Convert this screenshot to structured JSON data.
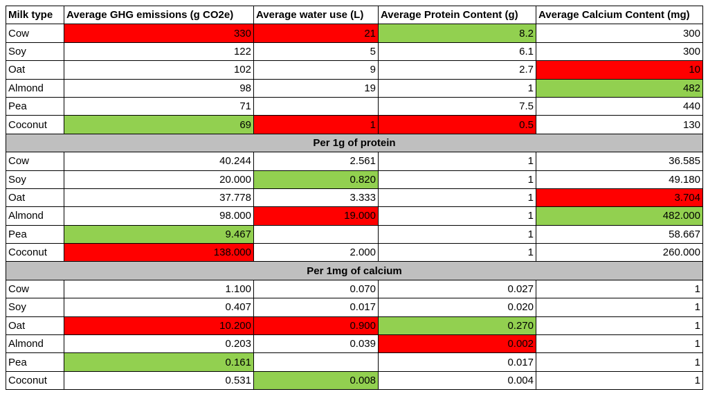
{
  "table": {
    "header": [
      "Milk type",
      "Average GHG emissions (g CO2e)",
      "Average water use (L)",
      "Average Protein Content (g)",
      "Average Calcium Content (mg)"
    ],
    "sections": [
      {
        "rows": [
          [
            "Cow",
            {
              "text": "330",
              "fill": "#ff0000"
            },
            {
              "text": "21",
              "fill": "#ff0000"
            },
            {
              "text": "8.2",
              "fill": "#92d050"
            },
            "300"
          ],
          [
            "Soy",
            "122",
            "5",
            "6.1",
            "300"
          ],
          [
            "Oat",
            "102",
            "9",
            "2.7",
            {
              "text": "10",
              "fill": "#ff0000"
            }
          ],
          [
            "Almond",
            "98",
            "19",
            "1",
            {
              "text": "482",
              "fill": "#92d050"
            }
          ],
          [
            "Pea",
            "71",
            null,
            "7.5",
            "440"
          ],
          [
            "Coconut",
            {
              "text": "69",
              "fill": "#92d050"
            },
            {
              "text": "1",
              "fill": "#ff0000"
            },
            {
              "text": "0.5",
              "fill": "#ff0000"
            },
            "130"
          ]
        ]
      },
      {
        "title": "Per 1g of protein",
        "rows": [
          [
            "Cow",
            "40.244",
            "2.561",
            "1",
            "36.585"
          ],
          [
            "Soy",
            "20.000",
            {
              "text": "0.820",
              "fill": "#92d050"
            },
            "1",
            "49.180"
          ],
          [
            "Oat",
            "37.778",
            "3.333",
            "1",
            {
              "text": "3.704",
              "fill": "#ff0000"
            }
          ],
          [
            "Almond",
            "98.000",
            {
              "text": "19.000",
              "fill": "#ff0000"
            },
            "1",
            {
              "text": "482.000",
              "fill": "#92d050"
            }
          ],
          [
            "Pea",
            {
              "text": "9.467",
              "fill": "#92d050"
            },
            null,
            "1",
            "58.667"
          ],
          [
            "Coconut",
            {
              "text": "138.000",
              "fill": "#ff0000"
            },
            "2.000",
            "1",
            "260.000"
          ]
        ]
      },
      {
        "title": "Per 1mg of calcium",
        "rows": [
          [
            "Cow",
            "1.100",
            "0.070",
            "0.027",
            "1"
          ],
          [
            "Soy",
            "0.407",
            "0.017",
            "0.020",
            "1"
          ],
          [
            "Oat",
            {
              "text": "10.200",
              "fill": "#ff0000"
            },
            {
              "text": "0.900",
              "fill": "#ff0000"
            },
            {
              "text": "0.270",
              "fill": "#92d050"
            },
            "1"
          ],
          [
            "Almond",
            "0.203",
            "0.039",
            {
              "text": "0.002",
              "fill": "#ff0000"
            },
            "1"
          ],
          [
            "Pea",
            {
              "text": "0.161",
              "fill": "#92d050"
            },
            null,
            "0.017",
            "1"
          ],
          [
            "Coconut",
            "0.531",
            {
              "text": "0.008",
              "fill": "#92d050"
            },
            "0.004",
            "1"
          ]
        ]
      }
    ]
  }
}
